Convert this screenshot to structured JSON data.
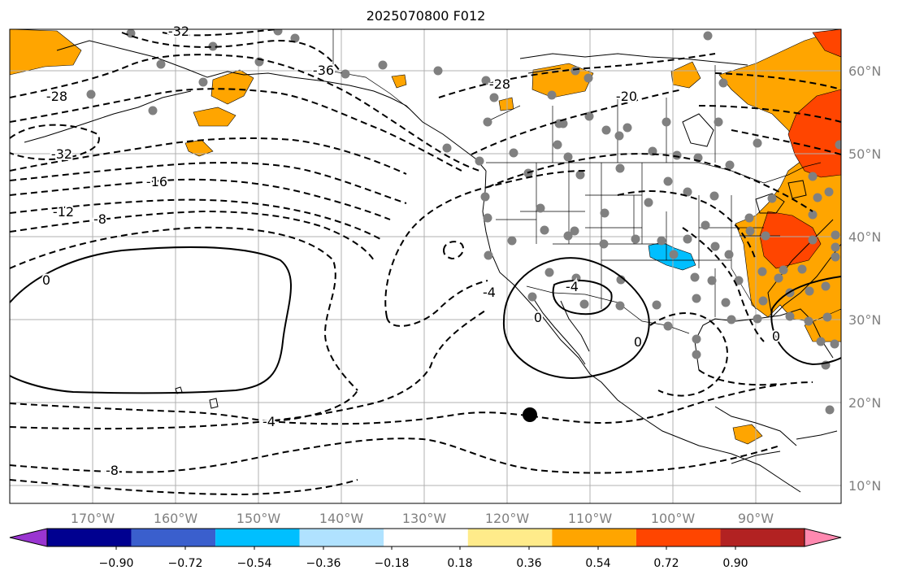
{
  "title": "2025070800 F012",
  "axes": {
    "lon_labels": [
      "170°W",
      "160°W",
      "150°W",
      "140°W",
      "130°W",
      "120°W",
      "110°W",
      "100°W",
      "90°W"
    ],
    "lat_labels": [
      "60°N",
      "50°N",
      "40°N",
      "30°N",
      "20°N",
      "10°N"
    ]
  },
  "colorbar": {
    "tick_labels": [
      "−0.90",
      "−0.72",
      "−0.54",
      "−0.36",
      "−0.18",
      "0.18",
      "0.36",
      "0.54",
      "0.72",
      "0.90"
    ],
    "colors": [
      "#9a35d1",
      "#000090",
      "#3a5fcd",
      "#00bfff",
      "#b0e2ff",
      "#ffffff",
      "#ffeb8a",
      "#ffa500",
      "#ff4500",
      "#b22222",
      "#ff89b0"
    ]
  },
  "contour_labels": [
    "-32",
    "-28",
    "-36",
    "-28",
    "-20",
    "-32",
    "-16",
    "-12",
    "-8",
    "-4",
    "-4",
    "-4",
    "-8",
    "0",
    "0",
    "0",
    "0"
  ],
  "colors": {
    "fill_orange": "#ffa500",
    "fill_red": "#ff4500",
    "fill_blue": "#00bfff",
    "station_dot": "#808080",
    "grid": "#b0b0b0"
  }
}
